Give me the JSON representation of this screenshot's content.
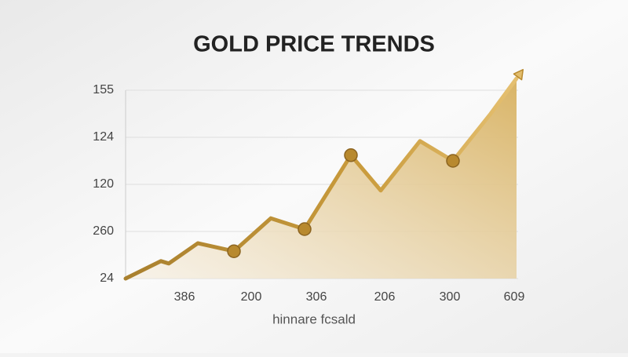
{
  "chart_data": {
    "type": "line",
    "title": "GOLD PRICE TRENDS",
    "x_label": "hinnare fcsald",
    "x": [
      0,
      0.9,
      1.1,
      1.84,
      2.76,
      3.7,
      4.56,
      5.74,
      6.5,
      7.5,
      8.34,
      9.3,
      9.96
    ],
    "values": [
      0,
      0.37,
      0.32,
      0.75,
      0.58,
      1.28,
      1.05,
      2.62,
      1.87,
      2.92,
      2.5,
      3.5,
      4.25
    ],
    "markers": [
      4,
      6,
      7,
      10
    ],
    "color": "#b8892e",
    "xlim": [
      0,
      10
    ],
    "xticks": [
      {
        "value": 1.5,
        "label": "386"
      },
      {
        "value": 3.2,
        "label": "200"
      },
      {
        "value": 4.86,
        "label": "306"
      },
      {
        "value": 6.6,
        "label": "206"
      },
      {
        "value": 8.26,
        "label": "300"
      },
      {
        "value": 9.9,
        "label": "609"
      }
    ],
    "ylim": [
      0,
      4
    ],
    "yticks": [
      {
        "value": 0,
        "label": "24"
      },
      {
        "value": 1,
        "label": "260"
      },
      {
        "value": 2,
        "label": "120"
      },
      {
        "value": 3,
        "label": "124"
      },
      {
        "value": 4,
        "label": "155"
      }
    ],
    "grid": true
  }
}
